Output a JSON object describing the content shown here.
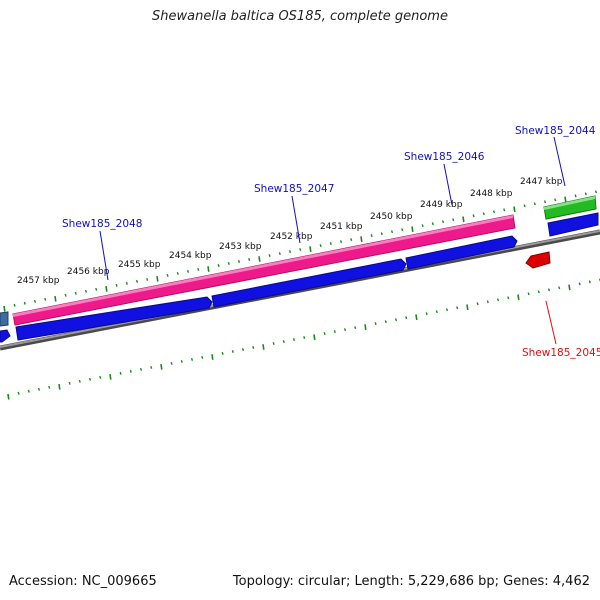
{
  "title": "Shewanella baltica OS185, complete genome",
  "footer": {
    "accession": "Accession: NC_009665",
    "summary": "Topology: circular; Length: 5,229,686 bp; Genes: 4,462"
  },
  "colors": {
    "pink_gene": "#ee1a8c",
    "blue_gene": "#1010e0",
    "green_gene": "#22bb22",
    "red_gene": "#dd0000",
    "backbone": "#7a7a7a",
    "tick": "#1a8a1a",
    "forward_label": "#1010c0",
    "reverse_label": "#dd1010"
  },
  "ticks": [
    {
      "label": "2457 kbp"
    },
    {
      "label": "2456 kbp"
    },
    {
      "label": "2455 kbp"
    },
    {
      "label": "2454 kbp"
    },
    {
      "label": "2453 kbp"
    },
    {
      "label": "2452 kbp"
    },
    {
      "label": "2451 kbp"
    },
    {
      "label": "2450 kbp"
    },
    {
      "label": "2449 kbp"
    },
    {
      "label": "2448 kbp"
    },
    {
      "label": "2447 kbp"
    }
  ],
  "genes": [
    {
      "label": "Shew185_2048",
      "strand": "forward",
      "color": "#1010c0"
    },
    {
      "label": "Shew185_2047",
      "strand": "forward",
      "color": "#1010c0"
    },
    {
      "label": "Shew185_2046",
      "strand": "forward",
      "color": "#1010c0"
    },
    {
      "label": "Shew185_2044",
      "strand": "forward",
      "color": "#1010c0"
    },
    {
      "label": "Shew185_2045",
      "strand": "reverse",
      "color": "#dd1010"
    }
  ]
}
